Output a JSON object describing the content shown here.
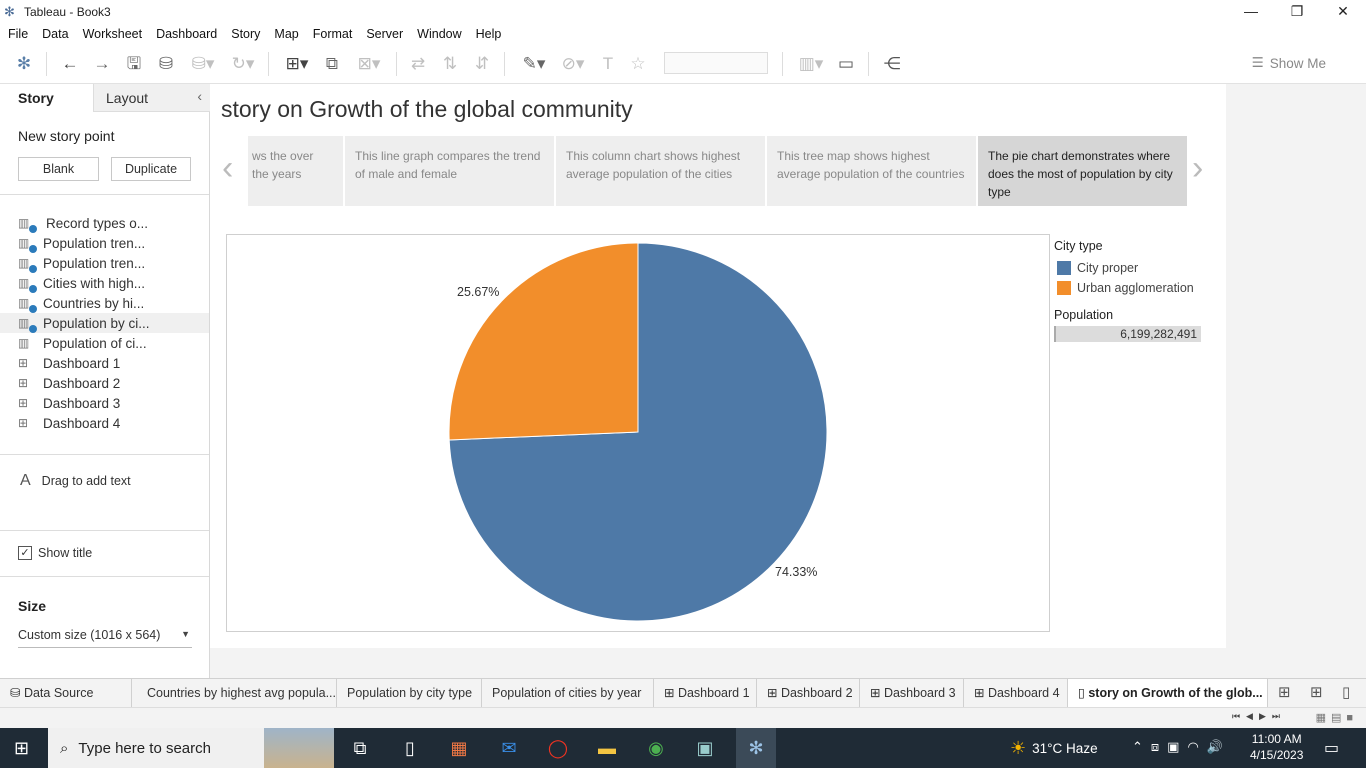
{
  "window": {
    "title": "Tableau - Book3",
    "minimize": "—",
    "restore": "❐",
    "close": "✕"
  },
  "menu": [
    "File",
    "Data",
    "Worksheet",
    "Dashboard",
    "Story",
    "Map",
    "Format",
    "Server",
    "Window",
    "Help"
  ],
  "toolbar": {
    "show_me": "Show Me"
  },
  "left_panel": {
    "tab_story": "Story",
    "tab_layout": "Layout",
    "new_story_point": "New story point",
    "blank": "Blank",
    "duplicate": "Duplicate",
    "sheets": [
      {
        "label": "Record types o...",
        "type": "worksheet",
        "used": true
      },
      {
        "label": "Population tren...",
        "type": "worksheet",
        "used": true
      },
      {
        "label": "Population tren...",
        "type": "worksheet",
        "used": true
      },
      {
        "label": "Cities with high...",
        "type": "worksheet",
        "used": true
      },
      {
        "label": "Countries by hi...",
        "type": "worksheet",
        "used": true
      },
      {
        "label": "Population by ci...",
        "type": "worksheet",
        "used": true
      },
      {
        "label": "Population of ci...",
        "type": "worksheet",
        "used": false
      },
      {
        "label": "Dashboard 1",
        "type": "dashboard",
        "used": false
      },
      {
        "label": "Dashboard 2",
        "type": "dashboard",
        "used": false
      },
      {
        "label": "Dashboard 3",
        "type": "dashboard",
        "used": false
      },
      {
        "label": "Dashboard 4",
        "type": "dashboard",
        "used": false
      }
    ],
    "drag_text": "Drag to add text",
    "show_title": "Show title",
    "size_title": "Size",
    "size_value": "Custom size (1016 x 564)"
  },
  "story": {
    "title": "story on Growth of the global community",
    "points": [
      {
        "text": "ws the over the years",
        "active": false
      },
      {
        "text": "This line graph compares the trend of male and female",
        "active": false
      },
      {
        "text": "This column chart shows highest average population of the cities",
        "active": false
      },
      {
        "text": "This tree map shows highest average population of the countries",
        "active": false
      },
      {
        "text": "The pie chart demonstrates where does the most of population by city type",
        "active": true
      }
    ]
  },
  "chart_data": {
    "type": "pie",
    "title": "",
    "slices": [
      {
        "name": "City proper",
        "value": 74.33,
        "label": "74.33%",
        "color": "#4e79a7"
      },
      {
        "name": "Urban agglomeration",
        "value": 25.67,
        "label": "25.67%",
        "color": "#f28e2b"
      }
    ],
    "legend": {
      "title": "City type",
      "placement": "right"
    },
    "size_legend": {
      "title": "Population",
      "value": "6,199,282,491"
    }
  },
  "sheet_tabs": {
    "data_source": "Data Source",
    "tabs": [
      {
        "label": "Countries by highest avg popula...",
        "kind": "worksheet"
      },
      {
        "label": "Population by city type",
        "kind": "worksheet"
      },
      {
        "label": "Population of cities by year",
        "kind": "worksheet"
      },
      {
        "label": "Dashboard 1",
        "kind": "dashboard"
      },
      {
        "label": "Dashboard 2",
        "kind": "dashboard"
      },
      {
        "label": "Dashboard 3",
        "kind": "dashboard"
      },
      {
        "label": "Dashboard 4",
        "kind": "dashboard"
      },
      {
        "label": "story on Growth of the glob...",
        "kind": "story",
        "active": true
      }
    ]
  },
  "taskbar": {
    "search_placeholder": "Type here to search",
    "weather": "31°C  Haze",
    "time": "11:00 AM",
    "date": "4/15/2023"
  }
}
